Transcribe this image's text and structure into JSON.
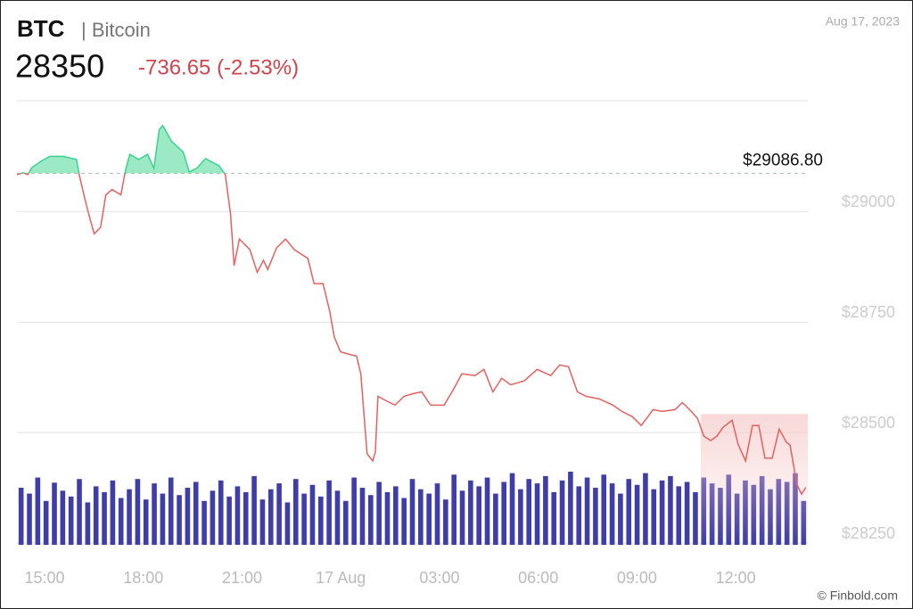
{
  "header": {
    "symbol": "BTC",
    "name": "| Bitcoin",
    "price": "28350",
    "change": "-736.65 (-2.53%)",
    "date": "Aug 17, 2023"
  },
  "credit": "© Finbold.com",
  "chart_data": {
    "type": "line",
    "x": [
      14.16,
      14.35,
      14.49,
      14.62,
      14.89,
      15.16,
      15.57,
      15.97,
      16.05,
      16.24,
      16.38,
      16.51,
      16.7,
      16.86,
      17.05,
      17.32,
      17.46,
      17.59,
      17.86,
      18.13,
      18.32,
      18.48,
      18.59,
      18.86,
      19.21,
      19.4,
      19.62,
      19.89,
      20.3,
      20.49,
      20.65,
      20.76,
      20.92,
      21.24,
      21.46,
      21.65,
      21.78,
      22.05,
      22.32,
      22.59,
      23,
      23.19,
      23.46,
      23.67,
      23.8,
      23.99,
      24.26,
      24.48,
      24.61,
      24.8,
      24.97,
      25.05,
      25.13,
      25.38,
      25.65,
      25.92,
      26.19,
      26.46,
      26.73,
      27.14,
      27.41,
      27.68,
      28.08,
      28.35,
      28.62,
      28.89,
      29.16,
      29.57,
      29.97,
      30.38,
      30.65,
      30.92,
      31.19,
      31.46,
      31.86,
      32.27,
      32.54,
      32.86,
      33.13,
      33.49,
      33.76,
      34.16,
      34.38,
      34.65,
      34.84,
      35.03,
      35.24,
      35.43,
      35.62,
      35.89,
      36.08,
      36.3,
      36.51,
      36.7,
      36.89,
      37.11,
      37.32,
      37.54,
      37.65,
      37.86,
      38,
      38.13
    ],
    "series": [
      {
        "name": "BTC",
        "color": "#e5605f",
        "values": [
          29084,
          29088,
          29084,
          29100,
          29114,
          29125,
          29125,
          29118,
          29084,
          29024,
          28984,
          28950,
          28964,
          29038,
          29050,
          29038,
          29094,
          29130,
          29118,
          29130,
          29098,
          29185,
          29195,
          29159,
          29135,
          29090,
          29098,
          29120,
          29104,
          29084,
          28994,
          28878,
          28938,
          28914,
          28863,
          28890,
          28869,
          28918,
          28938,
          28914,
          28894,
          28837,
          28837,
          28773,
          28717,
          28683,
          28677,
          28673,
          28633,
          28452,
          28436,
          28456,
          28582,
          28572,
          28562,
          28582,
          28588,
          28592,
          28562,
          28562,
          28596,
          28633,
          28629,
          28643,
          28592,
          28623,
          28608,
          28617,
          28643,
          28629,
          28653,
          28649,
          28592,
          28582,
          28576,
          28562,
          28548,
          28536,
          28516,
          28552,
          28548,
          28552,
          28568,
          28548,
          28532,
          28492,
          28482,
          28492,
          28512,
          28528,
          28472,
          28436,
          28516,
          28516,
          28442,
          28442,
          28508,
          28478,
          28472,
          28382,
          28361,
          28376
        ]
      }
    ],
    "up_color": "#3ad38d",
    "reference": {
      "value": 29086.8,
      "label": "$29086.80"
    },
    "volume": {
      "color": "#3f3ea8",
      "values": [
        78,
        70,
        92,
        60,
        85,
        74,
        66,
        90,
        58,
        80,
        72,
        88,
        64,
        76,
        90,
        62,
        84,
        70,
        92,
        68,
        78,
        86,
        60,
        74,
        88,
        66,
        80,
        72,
        94,
        62,
        76,
        84,
        58,
        90,
        70,
        82,
        66,
        88,
        74,
        60,
        92,
        78,
        68,
        86,
        72,
        80,
        64,
        90,
        76,
        70,
        84,
        62,
        96,
        74,
        88,
        80,
        92,
        70,
        86,
        98,
        76,
        90,
        84,
        94,
        72,
        88,
        100,
        80,
        92,
        78,
        96,
        84,
        70,
        90,
        82,
        98,
        76,
        88,
        94,
        80,
        86,
        72,
        92,
        84,
        78,
        96,
        70,
        88,
        82,
        94,
        76,
        90,
        86,
        98,
        60
      ]
    },
    "xlim": [
      14.16,
      38.19
    ],
    "ylim": [
      28246,
      29251
    ],
    "xticks": [
      {
        "value": 15,
        "label": "15:00"
      },
      {
        "value": 18,
        "label": "18:00"
      },
      {
        "value": 21,
        "label": "21:00"
      },
      {
        "value": 24,
        "label": "17 Aug"
      },
      {
        "value": 27,
        "label": "03:00"
      },
      {
        "value": 30,
        "label": "06:00"
      },
      {
        "value": 33,
        "label": "09:00"
      },
      {
        "value": 36,
        "label": "12:00"
      }
    ],
    "yticks": [
      {
        "value": 28250,
        "label": "$28250"
      },
      {
        "value": 28500,
        "label": "$28500"
      },
      {
        "value": 28750,
        "label": "$28750"
      },
      {
        "value": 29000,
        "label": "$29000"
      }
    ],
    "grid": true
  }
}
